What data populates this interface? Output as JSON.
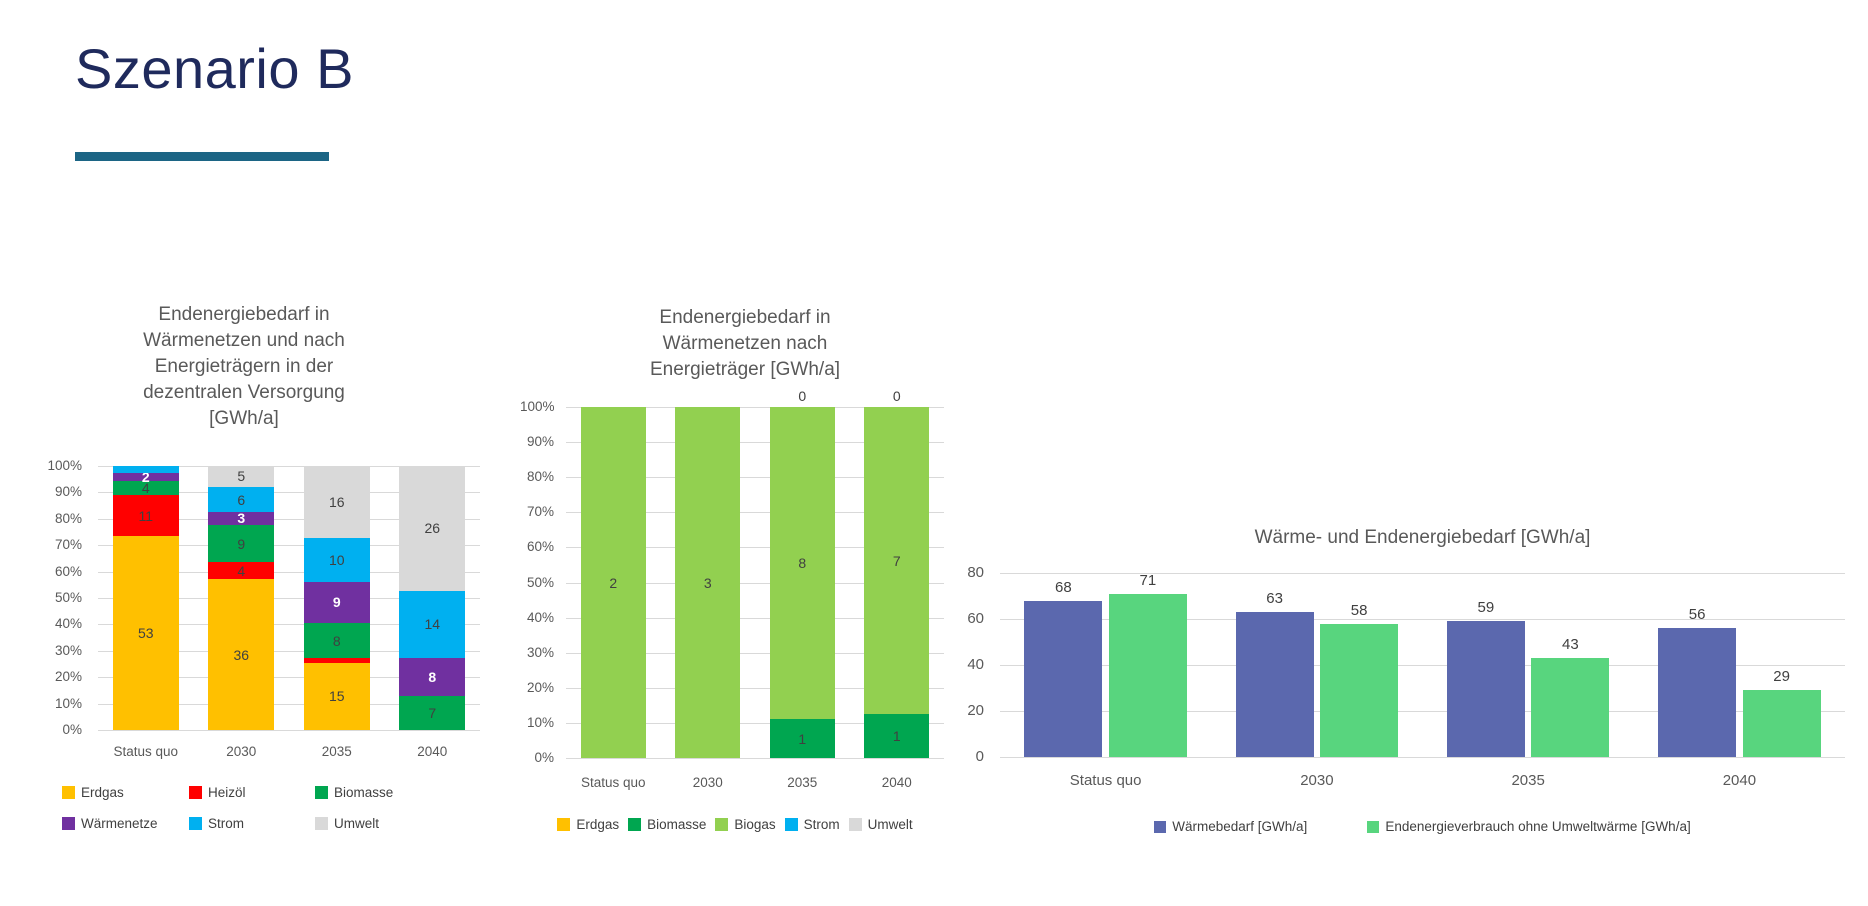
{
  "slide": {
    "title": "Szenario B",
    "title_color": "#1F2A5C",
    "underline_color": "#1C6585"
  },
  "chart_data": [
    {
      "type": "bar",
      "subtype": "stacked-100-percent",
      "title": "Endenergiebedarf in\nWärmenetzen und nach\nEnergieträgern in der\ndezentralen Versorgung\n[GWh/a]",
      "categories": [
        "Status quo",
        "2030",
        "2035",
        "2040"
      ],
      "y_ticks": [
        "100%",
        "90%",
        "80%",
        "70%",
        "60%",
        "50%",
        "40%",
        "30%",
        "20%",
        "10%",
        "0%"
      ],
      "grid": true,
      "legend_position": "bottom",
      "series": [
        {
          "name": "Erdgas",
          "color": "#FFC000",
          "values": [
            53,
            36,
            15,
            0
          ],
          "labels": [
            "53",
            "36",
            "15",
            null
          ]
        },
        {
          "name": "Heizöl",
          "color": "#FF0000",
          "values": [
            11,
            4,
            1,
            0
          ],
          "labels": [
            "11",
            "4",
            null,
            null
          ]
        },
        {
          "name": "Biomasse",
          "color": "#00A650",
          "values": [
            4,
            9,
            8,
            7
          ],
          "labels": [
            "4",
            "9",
            "8",
            "7"
          ]
        },
        {
          "name": "Wärmenetze",
          "color": "#7030A0",
          "values": [
            2,
            3,
            9,
            8
          ],
          "labels": [
            "2",
            "3",
            "9",
            "8"
          ],
          "label_color": "#FFFFFF",
          "label_bold": true
        },
        {
          "name": "Strom",
          "color": "#00B0F0",
          "values": [
            2,
            6,
            10,
            14
          ],
          "labels": [
            null,
            "6",
            "10",
            "14"
          ]
        },
        {
          "name": "Umwelt",
          "color": "#D9D9D9",
          "values": [
            0,
            5,
            16,
            26
          ],
          "labels": [
            null,
            "5",
            "16",
            "26"
          ]
        }
      ]
    },
    {
      "type": "bar",
      "subtype": "stacked-100-percent",
      "title": "Endenergiebedarf in\nWärmenetzen nach\nEnergieträger [GWh/a]",
      "categories": [
        "Status quo",
        "2030",
        "2035",
        "2040"
      ],
      "y_ticks": [
        "100%",
        "90%",
        "80%",
        "70%",
        "60%",
        "50%",
        "40%",
        "30%",
        "20%",
        "10%",
        "0%"
      ],
      "grid": true,
      "legend_position": "bottom",
      "series": [
        {
          "name": "Erdgas",
          "color": "#FFC000",
          "values": [
            0,
            0,
            0,
            0
          ],
          "labels": [
            "0",
            "0",
            null,
            null
          ]
        },
        {
          "name": "Biomasse",
          "color": "#00A650",
          "values": [
            0,
            0,
            1,
            1
          ],
          "labels": [
            null,
            null,
            "1",
            "1"
          ]
        },
        {
          "name": "Biogas",
          "color": "#92D050",
          "values": [
            2,
            3,
            8,
            7
          ],
          "labels": [
            "2",
            "3",
            "8",
            "7"
          ]
        },
        {
          "name": "Strom",
          "color": "#00B0F0",
          "values": [
            0,
            0,
            0,
            0
          ],
          "labels": [
            null,
            null,
            null,
            null
          ]
        },
        {
          "name": "Umwelt",
          "color": "#D9D9D9",
          "values": [
            0,
            0,
            0,
            0
          ],
          "labels": [
            null,
            null,
            "0",
            "0"
          ]
        }
      ]
    },
    {
      "type": "bar",
      "subtype": "grouped",
      "title": "Wärme- und Endenergiebedarf [GWh/a]",
      "categories": [
        "Status quo",
        "2030",
        "2035",
        "2040"
      ],
      "y_ticks": [
        "80",
        "60",
        "40",
        "20",
        "0"
      ],
      "ymax": 80,
      "grid": true,
      "legend_position": "bottom",
      "series": [
        {
          "name": "Wärmebedarf [GWh/a]",
          "color": "#5B68AE",
          "values": [
            68,
            63,
            59,
            56
          ],
          "labels": [
            "68",
            "63",
            "59",
            "56"
          ]
        },
        {
          "name": "Endenergieverbrauch ohne Umweltwärme [GWh/a]",
          "color": "#58D57E",
          "values": [
            71,
            58,
            43,
            29
          ],
          "labels": [
            "71",
            "58",
            "43",
            "29"
          ]
        }
      ]
    }
  ]
}
